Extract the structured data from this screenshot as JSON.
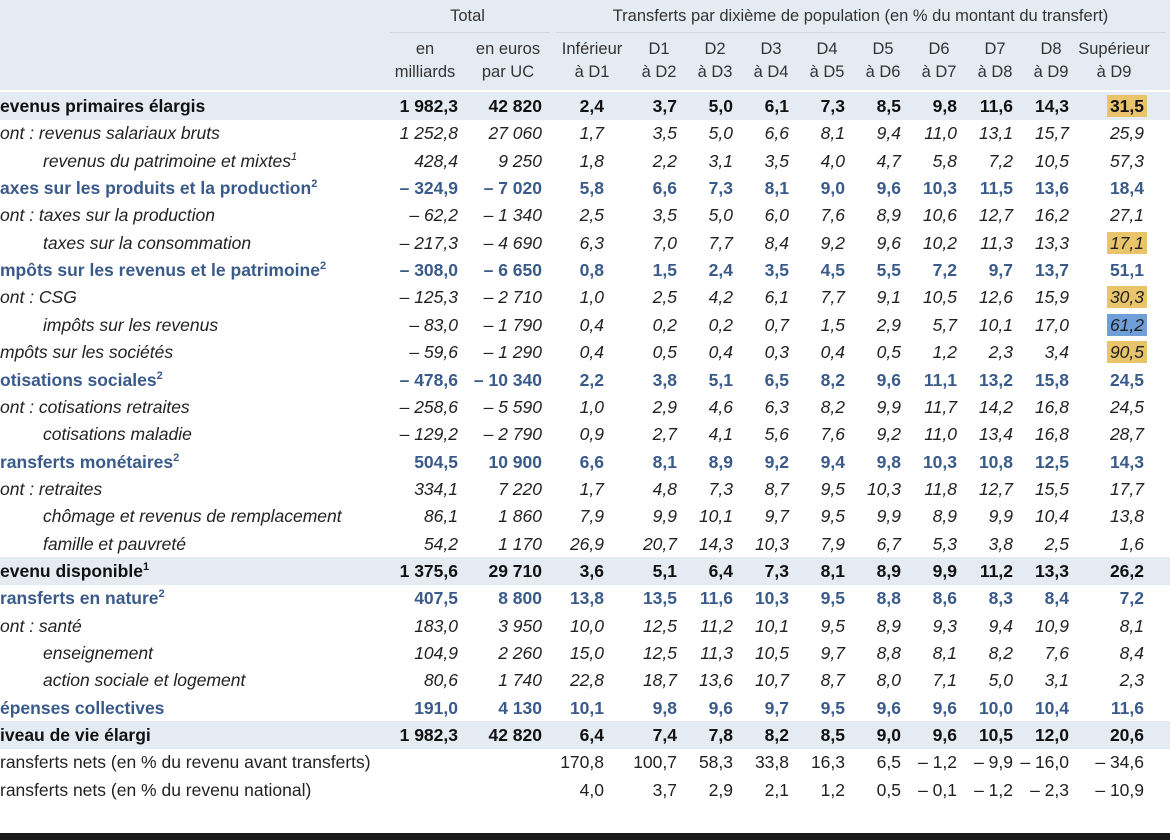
{
  "header": {
    "total_label": "Total",
    "transfers_label": "Transferts par dixième de population (en % du montant du transfert)",
    "columns": [
      {
        "l1": "en",
        "l2": "milliards"
      },
      {
        "l1": "en euros",
        "l2": "par UC"
      },
      {
        "l1": "Inférieur",
        "l2": "à D1"
      },
      {
        "l1": "D1",
        "l2": "à D2"
      },
      {
        "l1": "D2",
        "l2": "à D3"
      },
      {
        "l1": "D3",
        "l2": "à D4"
      },
      {
        "l1": "D4",
        "l2": "à D5"
      },
      {
        "l1": "D5",
        "l2": "à D6"
      },
      {
        "l1": "D6",
        "l2": "à D7"
      },
      {
        "l1": "D7",
        "l2": "à D8"
      },
      {
        "l1": "D8",
        "l2": "à D9"
      },
      {
        "l1": "Supérieur",
        "l2": "à D9"
      }
    ]
  },
  "highlight_colors": {
    "gold": "#e9c46a",
    "blue": "#6f9fd8"
  },
  "rows": [
    {
      "label": "evenus primaires élargis",
      "sup": "",
      "style": "bold",
      "band": true,
      "values": [
        "1 982,3",
        "42 820",
        "2,4",
        "3,7",
        "5,0",
        "6,1",
        "7,3",
        "8,5",
        "9,8",
        "11,6",
        "14,3",
        "31,5"
      ],
      "hl": "gold"
    },
    {
      "label": "ont : revenus salariaux bruts",
      "sup": "",
      "style": "it",
      "values": [
        "1 252,8",
        "27 060",
        "1,7",
        "3,5",
        "5,0",
        "6,6",
        "8,1",
        "9,4",
        "11,0",
        "13,1",
        "15,7",
        "25,9"
      ]
    },
    {
      "label": "revenus du patrimoine et mixtes",
      "sup": "1",
      "style": "it",
      "indent": true,
      "values": [
        "428,4",
        "9 250",
        "1,8",
        "2,2",
        "3,1",
        "3,5",
        "4,0",
        "4,7",
        "5,8",
        "7,2",
        "10,5",
        "57,3"
      ]
    },
    {
      "label": "axes sur les produits et la production",
      "sup": "2",
      "style": "blue",
      "values": [
        "– 324,9",
        "– 7 020",
        "5,8",
        "6,6",
        "7,3",
        "8,1",
        "9,0",
        "9,6",
        "10,3",
        "11,5",
        "13,6",
        "18,4"
      ]
    },
    {
      "label": "ont : taxes sur la production",
      "sup": "",
      "style": "it",
      "values": [
        "– 62,2",
        "– 1 340",
        "2,5",
        "3,5",
        "5,0",
        "6,0",
        "7,6",
        "8,9",
        "10,6",
        "12,7",
        "16,2",
        "27,1"
      ]
    },
    {
      "label": "taxes sur la consommation",
      "sup": "",
      "style": "it",
      "indent": true,
      "values": [
        "– 217,3",
        "– 4 690",
        "6,3",
        "7,0",
        "7,7",
        "8,4",
        "9,2",
        "9,6",
        "10,2",
        "11,3",
        "13,3",
        "17,1"
      ],
      "hl": "gold"
    },
    {
      "label": "mpôts sur les revenus et le patrimoine",
      "sup": "2",
      "style": "blue",
      "values": [
        "– 308,0",
        "– 6 650",
        "0,8",
        "1,5",
        "2,4",
        "3,5",
        "4,5",
        "5,5",
        "7,2",
        "9,7",
        "13,7",
        "51,1"
      ]
    },
    {
      "label": "ont : CSG",
      "sup": "",
      "style": "it",
      "values": [
        "– 125,3",
        "– 2 710",
        "1,0",
        "2,5",
        "4,2",
        "6,1",
        "7,7",
        "9,1",
        "10,5",
        "12,6",
        "15,9",
        "30,3"
      ],
      "hl": "gold"
    },
    {
      "label": "impôts sur les revenus",
      "sup": "",
      "style": "it",
      "indent": true,
      "values": [
        "– 83,0",
        "– 1 790",
        "0,4",
        "0,2",
        "0,2",
        "0,7",
        "1,5",
        "2,9",
        "5,7",
        "10,1",
        "17,0",
        "61,2"
      ],
      "hl": "blue"
    },
    {
      "label": "mpôts sur les sociétés",
      "sup": "",
      "style": "it",
      "values": [
        "– 59,6",
        "– 1 290",
        "0,4",
        "0,5",
        "0,4",
        "0,3",
        "0,4",
        "0,5",
        "1,2",
        "2,3",
        "3,4",
        "90,5"
      ],
      "hl": "gold"
    },
    {
      "label": "otisations sociales",
      "sup": "2",
      "style": "blue",
      "values": [
        "– 478,6",
        "– 10 340",
        "2,2",
        "3,8",
        "5,1",
        "6,5",
        "8,2",
        "9,6",
        "11,1",
        "13,2",
        "15,8",
        "24,5"
      ]
    },
    {
      "label": "ont : cotisations retraites",
      "sup": "",
      "style": "it",
      "values": [
        "– 258,6",
        "– 5 590",
        "1,0",
        "2,9",
        "4,6",
        "6,3",
        "8,2",
        "9,9",
        "11,7",
        "14,2",
        "16,8",
        "24,5"
      ]
    },
    {
      "label": "cotisations maladie",
      "sup": "",
      "style": "it",
      "indent": true,
      "values": [
        "– 129,2",
        "– 2 790",
        "0,9",
        "2,7",
        "4,1",
        "5,6",
        "7,6",
        "9,2",
        "11,0",
        "13,4",
        "16,8",
        "28,7"
      ]
    },
    {
      "label": "ransferts monétaires",
      "sup": "2",
      "style": "blue",
      "values": [
        "504,5",
        "10 900",
        "6,6",
        "8,1",
        "8,9",
        "9,2",
        "9,4",
        "9,8",
        "10,3",
        "10,8",
        "12,5",
        "14,3"
      ]
    },
    {
      "label": "ont : retraites",
      "sup": "",
      "style": "it",
      "values": [
        "334,1",
        "7 220",
        "1,7",
        "4,8",
        "7,3",
        "8,7",
        "9,5",
        "10,3",
        "11,8",
        "12,7",
        "15,5",
        "17,7"
      ]
    },
    {
      "label": "chômage et revenus de remplacement",
      "sup": "",
      "style": "it",
      "indent": true,
      "values": [
        "86,1",
        "1 860",
        "7,9",
        "9,9",
        "10,1",
        "9,7",
        "9,5",
        "9,9",
        "8,9",
        "9,9",
        "10,4",
        "13,8"
      ]
    },
    {
      "label": "famille et pauvreté",
      "sup": "",
      "style": "it",
      "indent": true,
      "values": [
        "54,2",
        "1 170",
        "26,9",
        "20,7",
        "14,3",
        "10,3",
        "7,9",
        "6,7",
        "5,3",
        "3,8",
        "2,5",
        "1,6"
      ]
    },
    {
      "label": "evenu disponible",
      "sup": "1",
      "style": "bold",
      "band": true,
      "values": [
        "1 375,6",
        "29 710",
        "3,6",
        "5,1",
        "6,4",
        "7,3",
        "8,1",
        "8,9",
        "9,9",
        "11,2",
        "13,3",
        "26,2"
      ]
    },
    {
      "label": "ransferts en nature",
      "sup": "2",
      "style": "blue",
      "values": [
        "407,5",
        "8 800",
        "13,8",
        "13,5",
        "11,6",
        "10,3",
        "9,5",
        "8,8",
        "8,6",
        "8,3",
        "8,4",
        "7,2"
      ]
    },
    {
      "label": "ont : santé",
      "sup": "",
      "style": "it",
      "values": [
        "183,0",
        "3 950",
        "10,0",
        "12,5",
        "11,2",
        "10,1",
        "9,5",
        "8,9",
        "9,3",
        "9,4",
        "10,9",
        "8,1"
      ]
    },
    {
      "label": "enseignement",
      "sup": "",
      "style": "it",
      "indent": true,
      "values": [
        "104,9",
        "2 260",
        "15,0",
        "12,5",
        "11,3",
        "10,5",
        "9,7",
        "8,8",
        "8,1",
        "8,2",
        "7,6",
        "8,4"
      ]
    },
    {
      "label": "action sociale et logement",
      "sup": "",
      "style": "it",
      "indent": true,
      "values": [
        "80,6",
        "1 740",
        "22,8",
        "18,7",
        "13,6",
        "10,7",
        "8,7",
        "8,0",
        "7,1",
        "5,0",
        "3,1",
        "2,3"
      ]
    },
    {
      "label": "épenses collectives",
      "sup": "",
      "style": "blue",
      "values": [
        "191,0",
        "4 130",
        "10,1",
        "9,8",
        "9,6",
        "9,7",
        "9,5",
        "9,6",
        "9,6",
        "10,0",
        "10,4",
        "11,6"
      ]
    },
    {
      "label": "iveau de vie élargi",
      "sup": "",
      "style": "bold",
      "band": true,
      "values": [
        "1 982,3",
        "42 820",
        "6,4",
        "7,4",
        "7,8",
        "8,2",
        "8,5",
        "9,0",
        "9,6",
        "10,5",
        "12,0",
        "20,6"
      ]
    },
    {
      "label": "ransferts nets (en % du revenu avant transferts)",
      "sup": "",
      "style": "plain",
      "values": [
        "",
        "",
        "170,8",
        "100,7",
        "58,3",
        "33,8",
        "16,3",
        "6,5",
        "– 1,2",
        "– 9,9",
        "– 16,0",
        "– 34,6"
      ]
    },
    {
      "label": "ransferts nets (en % du revenu national)",
      "sup": "",
      "style": "plain",
      "values": [
        "",
        "",
        "4,0",
        "3,7",
        "2,9",
        "2,1",
        "1,2",
        "0,5",
        "– 0,1",
        "– 1,2",
        "– 2,3",
        "– 10,9"
      ]
    }
  ]
}
